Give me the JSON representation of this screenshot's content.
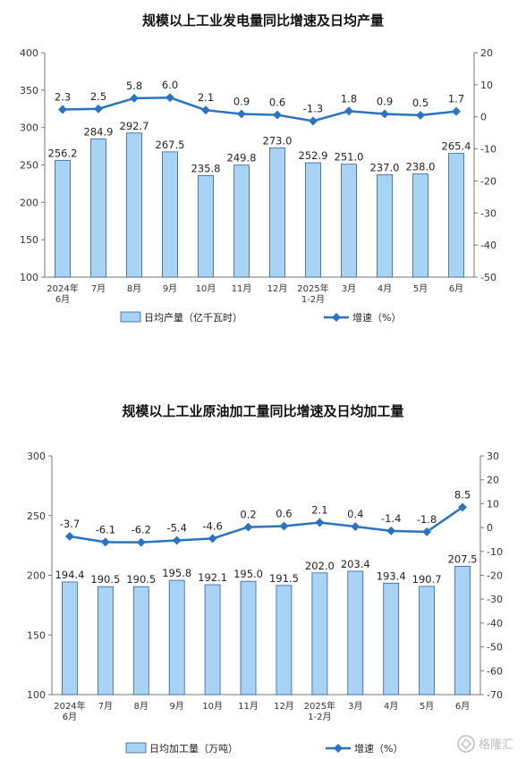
{
  "watermark": {
    "text": "格隆汇",
    "icon": "gelonghui-logo-icon"
  },
  "chart_data": [
    {
      "type": "bar+line",
      "title": "规模以上工业发电量同比增速及日均产量",
      "categories": [
        [
          "2024年",
          "6月"
        ],
        [
          "7月"
        ],
        [
          "8月"
        ],
        [
          "9月"
        ],
        [
          "10月"
        ],
        [
          "11月"
        ],
        [
          "12月"
        ],
        [
          "2025年",
          "1-2月"
        ],
        [
          "3月"
        ],
        [
          "4月"
        ],
        [
          "5月"
        ],
        [
          "6月"
        ]
      ],
      "series": [
        {
          "name": "日均产量（亿千瓦时）",
          "kind": "bar",
          "axis": "left",
          "color": "#a9d3f5",
          "edge": "#2e5f9e",
          "values": [
            256.2,
            284.9,
            292.7,
            267.5,
            235.8,
            249.8,
            273.0,
            252.9,
            251.0,
            237.0,
            238.0,
            265.4
          ],
          "labels": [
            "256.2",
            "284.9",
            "292.7",
            "267.5",
            "235.8",
            "249.8",
            "273.0",
            "252.9",
            "251.0",
            "237.0",
            "238.0",
            "265.4"
          ]
        },
        {
          "name": "增速（%）",
          "kind": "line",
          "axis": "right",
          "color": "#2a73c0",
          "values": [
            2.3,
            2.5,
            5.8,
            6.0,
            2.1,
            0.9,
            0.6,
            -1.3,
            1.8,
            0.9,
            0.5,
            1.7
          ],
          "labels": [
            "2.3",
            "2.5",
            "5.8",
            "6.0",
            "2.1",
            "0.9",
            "0.6",
            "-1.3",
            "1.8",
            "0.9",
            "0.5",
            "1.7"
          ]
        }
      ],
      "left_axis": {
        "min": 100,
        "max": 400,
        "ticks": [
          "100",
          "150",
          "200",
          "250",
          "300",
          "350",
          "400"
        ]
      },
      "right_axis": {
        "min": -50,
        "max": 20,
        "ticks": [
          "-50",
          "-40",
          "-30",
          "-20",
          "-10",
          "0",
          "10",
          "20"
        ]
      },
      "legend": "bottom"
    },
    {
      "type": "bar+line",
      "title": "规模以上工业原油加工量同比增速及日均加工量",
      "categories": [
        [
          "2024年",
          "6月"
        ],
        [
          "7月"
        ],
        [
          "8月"
        ],
        [
          "9月"
        ],
        [
          "10月"
        ],
        [
          "11月"
        ],
        [
          "12月"
        ],
        [
          "2025年",
          "1-2月"
        ],
        [
          "3月"
        ],
        [
          "4月"
        ],
        [
          "5月"
        ],
        [
          "6月"
        ]
      ],
      "series": [
        {
          "name": "日均加工量（万吨）",
          "kind": "bar",
          "axis": "left",
          "color": "#a9d3f5",
          "edge": "#2e5f9e",
          "values": [
            194.4,
            190.5,
            190.5,
            195.8,
            192.1,
            195.0,
            191.5,
            202.0,
            203.4,
            193.4,
            190.7,
            207.5
          ],
          "labels": [
            "194.4",
            "190.5",
            "190.5",
            "195.8",
            "192.1",
            "195.0",
            "191.5",
            "202.0",
            "203.4",
            "193.4",
            "190.7",
            "207.5"
          ]
        },
        {
          "name": "增速（%）",
          "kind": "line",
          "axis": "right",
          "color": "#2a73c0",
          "values": [
            -3.7,
            -6.1,
            -6.2,
            -5.4,
            -4.6,
            0.2,
            0.6,
            2.1,
            0.4,
            -1.4,
            -1.8,
            8.5
          ],
          "labels": [
            "-3.7",
            "-6.1",
            "-6.2",
            "-5.4",
            "-4.6",
            "0.2",
            "0.6",
            "2.1",
            "0.4",
            "-1.4",
            "-1.8",
            "8.5"
          ]
        }
      ],
      "left_axis": {
        "min": 100,
        "max": 300,
        "ticks": [
          "100",
          "150",
          "200",
          "250",
          "300"
        ]
      },
      "right_axis": {
        "min": -70,
        "max": 30,
        "ticks": [
          "-70",
          "-60",
          "-50",
          "-40",
          "-30",
          "-20",
          "-10",
          "0",
          "10",
          "20",
          "30"
        ]
      },
      "legend": "bottom"
    }
  ]
}
